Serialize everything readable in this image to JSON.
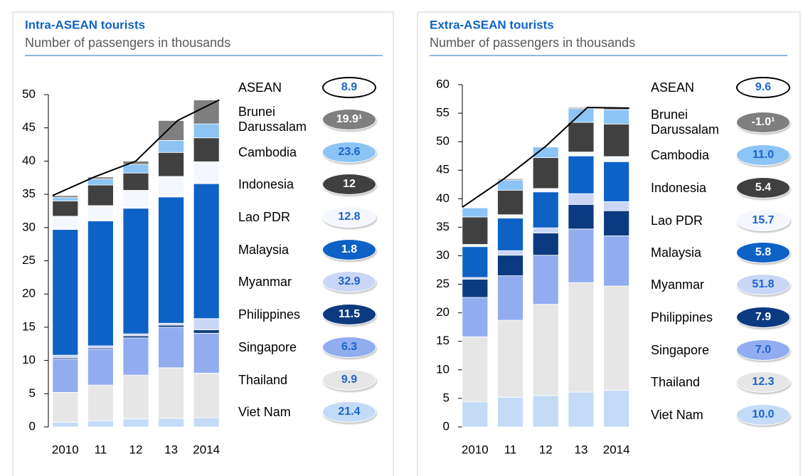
{
  "chart_data": [
    {
      "type": "bar",
      "stacked": true,
      "title": "Intra-ASEAN tourists",
      "subtitle": "Number of passengers in thousands",
      "categories": [
        "2010",
        "11",
        "12",
        "13",
        "2014"
      ],
      "ylim": [
        0,
        50
      ],
      "yticks": [
        0,
        5,
        10,
        15,
        20,
        25,
        30,
        35,
        40,
        45,
        50
      ],
      "asean": {
        "name": "ASEAN",
        "cagr": "8.9"
      },
      "line": {
        "color": "#000000",
        "values": [
          34.8,
          37.6,
          40.0,
          46.1,
          49.2
        ]
      },
      "series": [
        {
          "name": "Brunei Darussalam",
          "cagr": "19.9¹",
          "color": "#7f7f7f",
          "values": [
            0.3,
            0.3,
            0.5,
            3.0,
            3.6
          ]
        },
        {
          "name": "Cambodia",
          "cagr": "23.6",
          "color": "#8cc4f5",
          "values": [
            0.5,
            0.9,
            1.3,
            1.8,
            2.1
          ]
        },
        {
          "name": "Indonesia",
          "cagr": "12",
          "color": "#404040",
          "values": [
            2.3,
            3.1,
            2.6,
            3.6,
            3.6
          ]
        },
        {
          "name": "Lao PDR",
          "cagr": "12.8",
          "color": "#f4f7fd",
          "values": [
            2.0,
            2.3,
            2.7,
            3.1,
            3.3
          ]
        },
        {
          "name": "Malaysia",
          "cagr": "1.8",
          "color": "#0e62c6",
          "values": [
            18.9,
            18.8,
            18.9,
            19.0,
            20.3
          ]
        },
        {
          "name": "Myanmar",
          "cagr": "32.9",
          "color": "#c9d6f6",
          "values": [
            0.4,
            0.3,
            0.3,
            0.3,
            1.7
          ]
        },
        {
          "name": "Philippines",
          "cagr": "11.5",
          "color": "#0b3a80",
          "values": [
            0.2,
            0.2,
            0.3,
            0.3,
            0.5
          ]
        },
        {
          "name": "Singapore",
          "cagr": "6.3",
          "color": "#91adf0",
          "values": [
            5.0,
            5.4,
            5.6,
            6.1,
            6.0
          ]
        },
        {
          "name": "Thailand",
          "cagr": "9.9",
          "color": "#e6e6e6",
          "values": [
            4.5,
            5.4,
            6.6,
            7.6,
            6.7
          ]
        },
        {
          "name": "Viet Nam",
          "cagr": "21.4",
          "color": "#c3dbf7",
          "values": [
            0.7,
            0.9,
            1.2,
            1.3,
            1.4
          ]
        }
      ]
    },
    {
      "type": "bar",
      "stacked": true,
      "title": "Extra-ASEAN tourists",
      "subtitle": "Number of passengers in thousands",
      "categories": [
        "2010",
        "11",
        "12",
        "13",
        "2014"
      ],
      "ylim": [
        0,
        60
      ],
      "yticks": [
        0,
        5,
        10,
        15,
        20,
        25,
        30,
        35,
        40,
        45,
        50,
        55,
        60
      ],
      "asean": {
        "name": "ASEAN",
        "cagr": "9.6"
      },
      "line": {
        "color": "#000000",
        "values": [
          38.5,
          43.5,
          49.2,
          56.0,
          55.9
        ]
      },
      "series": [
        {
          "name": "Brunei Darussalam",
          "cagr": "-1.0¹",
          "color": "#7f7f7f",
          "values": [
            0.1,
            0.2,
            0.1,
            0.2,
            0.3
          ]
        },
        {
          "name": "Cambodia",
          "cagr": "11.0",
          "color": "#8cc4f5",
          "values": [
            1.6,
            1.8,
            1.9,
            2.4,
            2.5
          ]
        },
        {
          "name": "Indonesia",
          "cagr": "5.4",
          "color": "#404040",
          "values": [
            4.8,
            4.3,
            5.4,
            5.2,
            5.7
          ]
        },
        {
          "name": "Lao PDR",
          "cagr": "15.7",
          "color": "#f4f7fd",
          "values": [
            0.4,
            0.6,
            0.6,
            0.7,
            0.9
          ]
        },
        {
          "name": "Malaysia",
          "cagr": "5.8",
          "color": "#0e62c6",
          "values": [
            5.4,
            5.7,
            6.3,
            6.6,
            7.0
          ]
        },
        {
          "name": "Myanmar",
          "cagr": "51.8",
          "color": "#c9d6f6",
          "values": [
            0.3,
            0.8,
            0.9,
            1.9,
            1.6
          ]
        },
        {
          "name": "Philippines",
          "cagr": "7.9",
          "color": "#0b3a80",
          "values": [
            3.2,
            3.6,
            3.9,
            4.3,
            4.4
          ]
        },
        {
          "name": "Singapore",
          "cagr": "7.0",
          "color": "#91adf0",
          "values": [
            6.9,
            7.8,
            8.6,
            9.4,
            8.8
          ]
        },
        {
          "name": "Thailand",
          "cagr": "12.3",
          "color": "#e6e6e6",
          "values": [
            11.4,
            13.5,
            16.0,
            19.2,
            18.3
          ]
        },
        {
          "name": "Viet Nam",
          "cagr": "10.0",
          "color": "#c3dbf7",
          "values": [
            4.4,
            5.2,
            5.5,
            6.1,
            6.4
          ]
        }
      ]
    }
  ]
}
